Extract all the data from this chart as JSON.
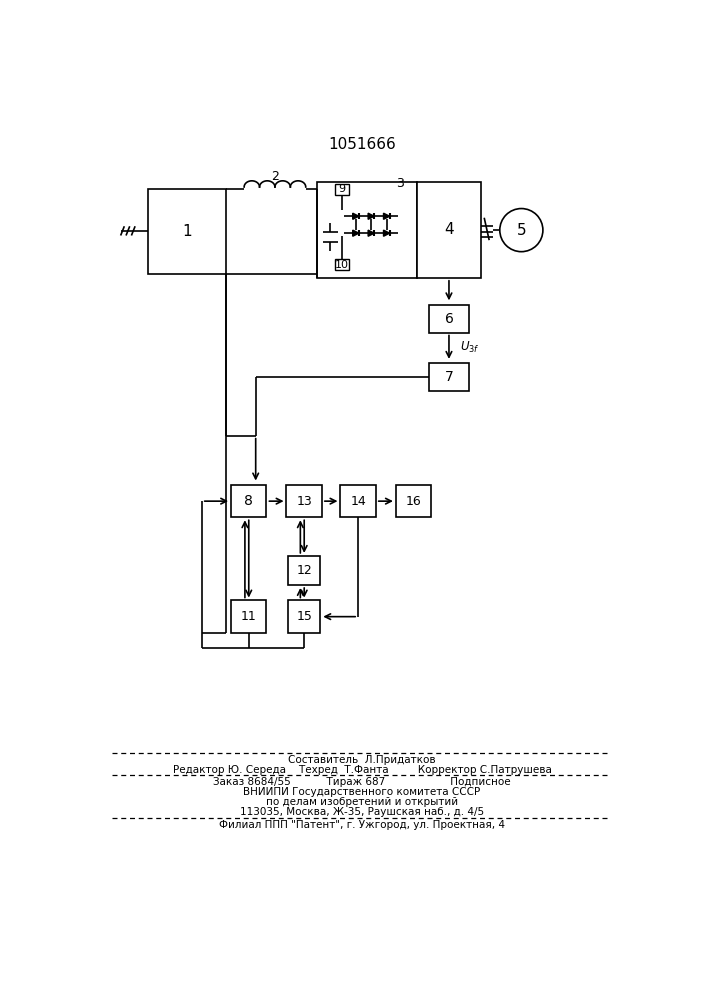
{
  "title": "1051666",
  "background_color": "#ffffff",
  "line_color": "#000000",
  "fig_width": 7.07,
  "fig_height": 10.0,
  "footer_lines": [
    "Составитель  Л.Придатков",
    "Редактор Ю. Середа    Техред  Т.Фанта         Корректор С.Патрушева",
    "Заказ 8684/55           Тираж 687                    Подписное",
    "ВНИИПИ Государственного комитета СССР",
    "по делам изобретений и открытий",
    "113035, Москва, Ж-35, Раушская наб., д. 4/5",
    "Филиал ППП \"Патент\", г. Ужгород, ул. Проектная, 4"
  ]
}
